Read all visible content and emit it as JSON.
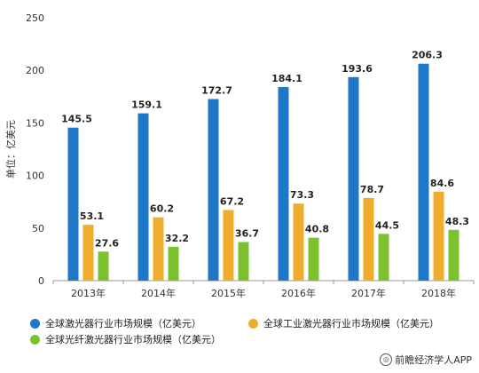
{
  "chart_data": {
    "type": "bar",
    "ylabel": "单位：亿美元",
    "ylim": [
      0,
      250
    ],
    "yticks": [
      0,
      50,
      100,
      150,
      200,
      250
    ],
    "categories": [
      "2013年",
      "2014年",
      "2015年",
      "2016年",
      "2017年",
      "2018年"
    ],
    "series": [
      {
        "name": "全球激光器行业市场规模（亿美元）",
        "color": "#1f77c8",
        "values": [
          145.5,
          159.1,
          172.7,
          184.1,
          193.6,
          206.3
        ]
      },
      {
        "name": "全球工业激光器行业市场规模（亿美元）",
        "color": "#f0ad2d",
        "values": [
          53.1,
          60.2,
          67.2,
          73.3,
          78.7,
          84.6
        ]
      },
      {
        "name": "全球光纤激光器行业市场规模（亿美元）",
        "color": "#7cc22f",
        "values": [
          27.6,
          32.2,
          36.7,
          40.8,
          44.5,
          48.3
        ]
      }
    ],
    "legend_position": "bottom",
    "grid": false
  },
  "source": {
    "text": "前瞻经济学人APP",
    "icon": "source-logo-icon"
  }
}
